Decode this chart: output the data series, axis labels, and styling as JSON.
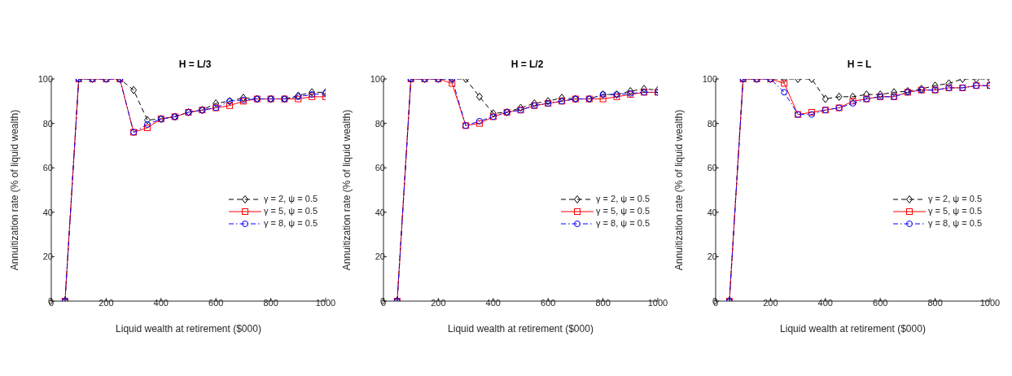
{
  "chart_data": [
    {
      "type": "line",
      "title": "H = L/3",
      "xlabel": "Liquid wealth at retirement ($000)",
      "ylabel": "Annuitization rate (% of liquid wealth)",
      "x": [
        50,
        100,
        150,
        200,
        250,
        300,
        350,
        400,
        450,
        500,
        550,
        600,
        650,
        700,
        750,
        800,
        850,
        900,
        950,
        1000
      ],
      "xlim": [
        0,
        1000
      ],
      "xticks": [
        0,
        200,
        400,
        600,
        800,
        1000
      ],
      "ylim": [
        0,
        100
      ],
      "yticks": [
        0,
        20,
        40,
        60,
        80,
        100
      ],
      "legend": "right",
      "series": [
        {
          "name": "γ = 2, ψ = 0.5",
          "color": "#000000",
          "marker": "diamond",
          "line_style": "dashed",
          "values": [
            0,
            100,
            100,
            100,
            100,
            95,
            81.5,
            82,
            83,
            85,
            86,
            89,
            90,
            91.5,
            91,
            91,
            91,
            92.5,
            94,
            94
          ]
        },
        {
          "name": "γ = 5, ψ = 0.5",
          "color": "#ff0000",
          "marker": "square",
          "line_style": "solid",
          "values": [
            0,
            100,
            100,
            100,
            100,
            76,
            78,
            82,
            83,
            85,
            86,
            87,
            88,
            90,
            91,
            91,
            91,
            91,
            92,
            92
          ]
        },
        {
          "name": "γ = 8, ψ = 0.5",
          "color": "#0000ff",
          "marker": "circle",
          "line_style": "dashdot",
          "values": [
            0,
            100,
            100,
            100,
            100,
            76,
            79.5,
            82,
            83,
            85,
            86,
            87,
            90,
            90.5,
            91,
            91,
            91,
            92,
            93,
            93.5
          ]
        }
      ]
    },
    {
      "type": "line",
      "title": "H = L/2",
      "xlabel": "Liquid wealth at retirement ($000)",
      "ylabel": "Annuitization rate (% of liquid wealth)",
      "x": [
        50,
        100,
        150,
        200,
        250,
        300,
        350,
        400,
        450,
        500,
        550,
        600,
        650,
        700,
        750,
        800,
        850,
        900,
        950,
        1000
      ],
      "xlim": [
        0,
        1000
      ],
      "xticks": [
        0,
        200,
        400,
        600,
        800,
        1000
      ],
      "ylim": [
        0,
        100
      ],
      "yticks": [
        0,
        20,
        40,
        60,
        80,
        100
      ],
      "legend": "right",
      "series": [
        {
          "name": "γ = 2, ψ = 0.5",
          "color": "#000000",
          "marker": "diamond",
          "line_style": "dashed",
          "values": [
            0,
            100,
            100,
            100,
            100,
            100,
            92,
            84.5,
            85,
            87,
            89,
            90,
            91.5,
            91,
            91,
            93,
            93,
            94.5,
            95.5,
            95
          ]
        },
        {
          "name": "γ = 5, ψ = 0.5",
          "color": "#ff0000",
          "marker": "square",
          "line_style": "solid",
          "values": [
            0,
            100,
            100,
            100,
            98,
            79,
            80,
            83,
            85,
            86,
            88,
            89,
            90,
            91,
            91,
            91,
            92,
            93,
            94,
            94
          ]
        },
        {
          "name": "γ = 8, ψ = 0.5",
          "color": "#0000ff",
          "marker": "circle",
          "line_style": "dashdot",
          "values": [
            0,
            100,
            100,
            100,
            100,
            79,
            81,
            83,
            85,
            86,
            88,
            89,
            90,
            91,
            91,
            93,
            93,
            93.5,
            94,
            94
          ]
        }
      ]
    },
    {
      "type": "line",
      "title": "H = L",
      "xlabel": "Liquid wealth at retirement ($000)",
      "ylabel": "Annuitization rate (% of liquid wealth)",
      "x": [
        50,
        100,
        150,
        200,
        250,
        300,
        350,
        400,
        450,
        500,
        550,
        600,
        650,
        700,
        750,
        800,
        850,
        900,
        950,
        1000
      ],
      "xlim": [
        0,
        1000
      ],
      "xticks": [
        0,
        200,
        400,
        600,
        800,
        1000
      ],
      "ylim": [
        0,
        100
      ],
      "yticks": [
        0,
        20,
        40,
        60,
        80,
        100
      ],
      "legend": "right",
      "series": [
        {
          "name": "γ = 2, ψ = 0.5",
          "color": "#000000",
          "marker": "diamond",
          "line_style": "dashed",
          "values": [
            0,
            100,
            100,
            100,
            100,
            100,
            100,
            91,
            92,
            92,
            93,
            93,
            94,
            94.5,
            95.5,
            97,
            98,
            100,
            100,
            100
          ]
        },
        {
          "name": "γ = 5, ψ = 0.5",
          "color": "#ff0000",
          "marker": "square",
          "line_style": "solid",
          "values": [
            0,
            100,
            100,
            100,
            98,
            84,
            85,
            86,
            87,
            90,
            91,
            92,
            92,
            94,
            95,
            95,
            96,
            96,
            97,
            97
          ]
        },
        {
          "name": "γ = 8, ψ = 0.5",
          "color": "#0000ff",
          "marker": "circle",
          "line_style": "dashdot",
          "values": [
            0,
            100,
            100,
            100,
            94,
            84,
            84,
            86,
            87,
            89,
            91,
            92,
            92,
            94,
            95,
            95,
            96,
            96,
            97,
            97
          ]
        }
      ]
    }
  ]
}
